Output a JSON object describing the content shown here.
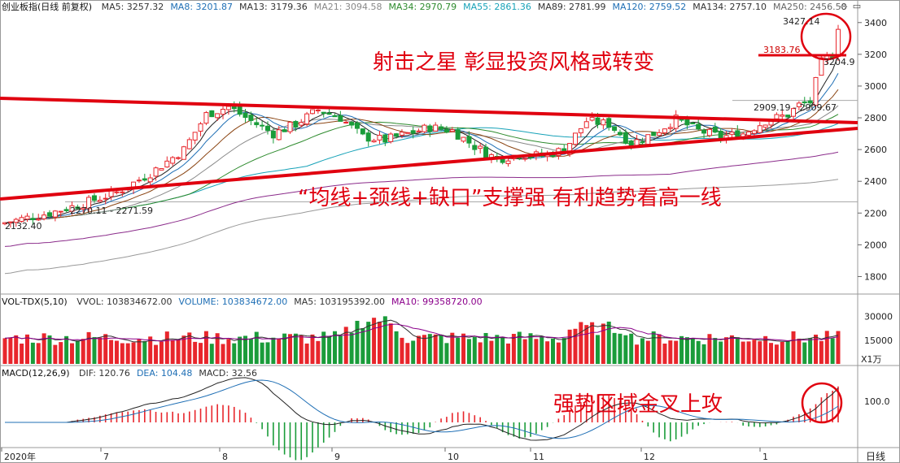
{
  "main_header": {
    "title": "创业板指(日线 前复权)",
    "ma": [
      {
        "label": "MA5: 3257.32",
        "color": "#333333"
      },
      {
        "label": "MA8: 3201.87",
        "color": "#1f6fb5"
      },
      {
        "label": "MA13: 3179.36",
        "color": "#333333"
      },
      {
        "label": "MA21: 3094.58",
        "color": "#888888"
      },
      {
        "label": "MA34: 2970.79",
        "color": "#2e8b2e"
      },
      {
        "label": "MA55: 2861.36",
        "color": "#17a2b8"
      },
      {
        "label": "MA89: 2781.99",
        "color": "#333333"
      },
      {
        "label": "MA120: 2759.52",
        "color": "#1f6fb5"
      },
      {
        "label": "MA134: 2757.10",
        "color": "#333333"
      },
      {
        "label": "MA250: 2456.58",
        "color": "#666666"
      }
    ]
  },
  "vol_header": {
    "title": "VOL-TDX(5,10)",
    "items": [
      {
        "label": "VVOL: 103834672.00",
        "color": "#333333"
      },
      {
        "label": "VOLUME: 103834672.00",
        "color": "#1f6fb5"
      },
      {
        "label": "MA5: 103195392.00",
        "color": "#333333"
      },
      {
        "label": "MA10: 99358720.00",
        "color": "#8b008b"
      }
    ]
  },
  "macd_header": {
    "title": "MACD(12,26,9)",
    "items": [
      {
        "label": "DIF: 120.76",
        "color": "#333333"
      },
      {
        "label": "DEA: 104.48",
        "color": "#1f6fb5"
      },
      {
        "label": "MACD: 32.56",
        "color": "#333333"
      }
    ]
  },
  "price_axis": [
    "3400",
    "3200",
    "3000",
    "2800",
    "2600",
    "2400",
    "2200",
    "2000",
    "1800"
  ],
  "vol_axis": [
    "30000",
    "15000"
  ],
  "vol_unit": "X1万",
  "macd_axis": [
    "100.0"
  ],
  "date_axis": [
    "2020年",
    "7",
    "8",
    "9",
    "10",
    "11",
    "12",
    "1"
  ],
  "period_button": "日线",
  "price_labels": {
    "high": "3427.14",
    "prev_high": "3183.76",
    "gap_low": "3204.9",
    "gap_range": "2909.19 - 2909.67",
    "gap_range2": "2270.11 - 2271.59",
    "start_low": "2132.40"
  },
  "annotations": {
    "top": "射击之星  彰显投资风格或转变",
    "mid": "“均线+颈线+缺口”支撑强  有利趋势看高一线",
    "macd": "强势区域金叉上攻"
  },
  "colors": {
    "up": "#e8262c",
    "down": "#1a9c3a",
    "annotation": "#e0000f",
    "grid": "#d8d8d8"
  },
  "window_buttons": [
    "◇",
    "▭"
  ],
  "chart_data": {
    "type": "candlestick",
    "index": "创业板指",
    "ylim": [
      1700,
      3450
    ],
    "series_note": "daily candles with moving averages, volume and MACD sub-charts"
  }
}
